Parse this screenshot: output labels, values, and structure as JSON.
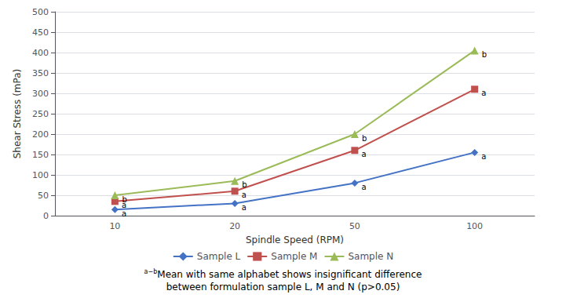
{
  "chart_data": {
    "type": "line",
    "xlabel": "Spindle Speed (RPM)",
    "ylabel": "Shear Stress (mPa)",
    "categories": [
      "10",
      "20",
      "50",
      "100"
    ],
    "series": [
      {
        "name": "Sample L",
        "color": "#4472C4",
        "marker": "diamond",
        "values": [
          15,
          30,
          80,
          155
        ],
        "annotations": [
          "a",
          "a",
          "a",
          "a"
        ]
      },
      {
        "name": "Sample M",
        "color": "#C0504D",
        "marker": "square",
        "values": [
          35,
          60,
          160,
          310
        ],
        "annotations": [
          "a",
          "a",
          "a",
          "a"
        ]
      },
      {
        "name": "Sample N",
        "color": "#9BBB59",
        "marker": "triangle",
        "values": [
          50,
          85,
          200,
          405
        ],
        "annotations": [
          "b",
          "b",
          "b",
          "b"
        ]
      }
    ],
    "ylim": [
      0,
      500
    ],
    "yticks": [
      0,
      50,
      100,
      150,
      200,
      250,
      300,
      350,
      400,
      450,
      500
    ],
    "grid": true,
    "legend": "bottom",
    "footnote": [
      {
        "superscript": "a−b",
        "text": "Mean with same alphabet shows insignificant difference"
      },
      {
        "text": "between formulation sample L, M and N (p>0.05)"
      }
    ]
  }
}
